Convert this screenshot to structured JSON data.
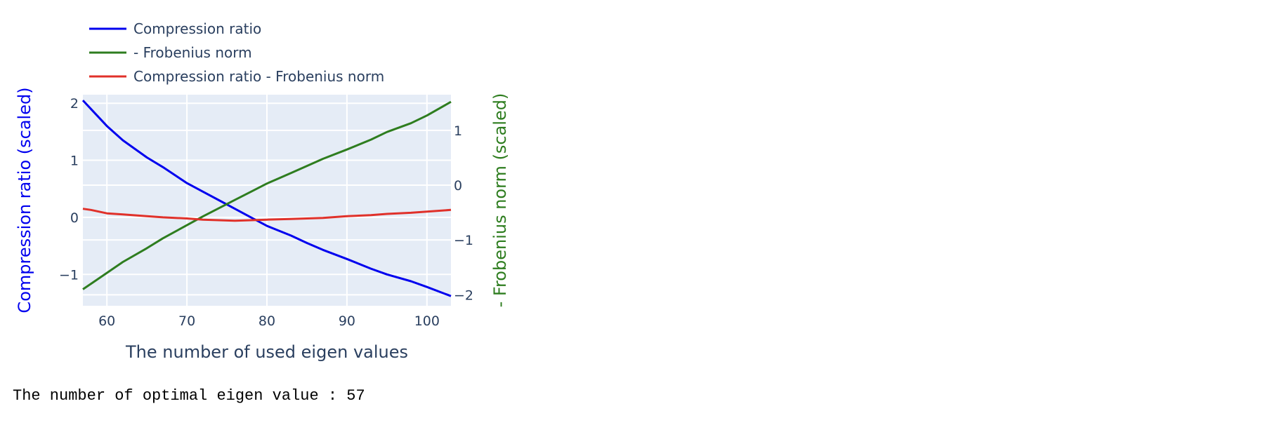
{
  "colors": {
    "background": "#ffffff",
    "plot_bg": "#e5ecf6",
    "grid": "#ffffff",
    "text": "#2a3f5f",
    "compression": "#0000ee",
    "frobenius": "#2e7d1f",
    "combined": "#e0312a"
  },
  "chart_data": {
    "type": "line",
    "title": "",
    "xlabel": "The number of used eigen values",
    "ylabel": "Compression ratio (scaled)",
    "y2label": "- Frobenius norm (scaled)",
    "xlim": [
      57,
      103
    ],
    "ylim": [
      -1.55,
      2.15
    ],
    "y2lim": [
      -2.2,
      1.65
    ],
    "xticks": [
      60,
      70,
      80,
      90,
      100
    ],
    "yticks": [
      -1,
      0,
      1,
      2
    ],
    "y2ticks": [
      -2,
      -1,
      0,
      1
    ],
    "ytick_labels": [
      "−1",
      "0",
      "1",
      "2"
    ],
    "y2tick_labels": [
      "−2",
      "−1",
      "0",
      "1"
    ],
    "grid": true,
    "legend_position": "top-left",
    "x": [
      57,
      58,
      60,
      62,
      65,
      67,
      70,
      72,
      74,
      76,
      78,
      80,
      83,
      85,
      87,
      90,
      93,
      95,
      98,
      100,
      103
    ],
    "series": [
      {
        "name": "Compression ratio",
        "axis": "y",
        "color": "#0000ee",
        "values": [
          2.05,
          1.9,
          1.6,
          1.35,
          1.05,
          0.88,
          0.6,
          0.45,
          0.3,
          0.15,
          0.0,
          -0.15,
          -0.32,
          -0.45,
          -0.57,
          -0.73,
          -0.9,
          -1.0,
          -1.12,
          -1.22,
          -1.38
        ]
      },
      {
        "name": "- Frobenius norm",
        "axis": "y2",
        "color": "#2e7d1f",
        "values": [
          -1.9,
          -1.8,
          -1.6,
          -1.4,
          -1.15,
          -0.97,
          -0.73,
          -0.57,
          -0.42,
          -0.27,
          -0.12,
          0.03,
          0.22,
          0.35,
          0.48,
          0.65,
          0.83,
          0.97,
          1.13,
          1.27,
          1.52
        ]
      },
      {
        "name": "Compression ratio - Frobenius norm",
        "axis": "y",
        "color": "#e0312a",
        "values": [
          0.15,
          0.13,
          0.07,
          0.05,
          0.02,
          0.0,
          -0.02,
          -0.04,
          -0.05,
          -0.06,
          -0.05,
          -0.04,
          -0.03,
          -0.02,
          -0.01,
          0.02,
          0.04,
          0.06,
          0.08,
          0.1,
          0.13
        ]
      }
    ]
  },
  "output_text": "The number of optimal eigen value : 57"
}
